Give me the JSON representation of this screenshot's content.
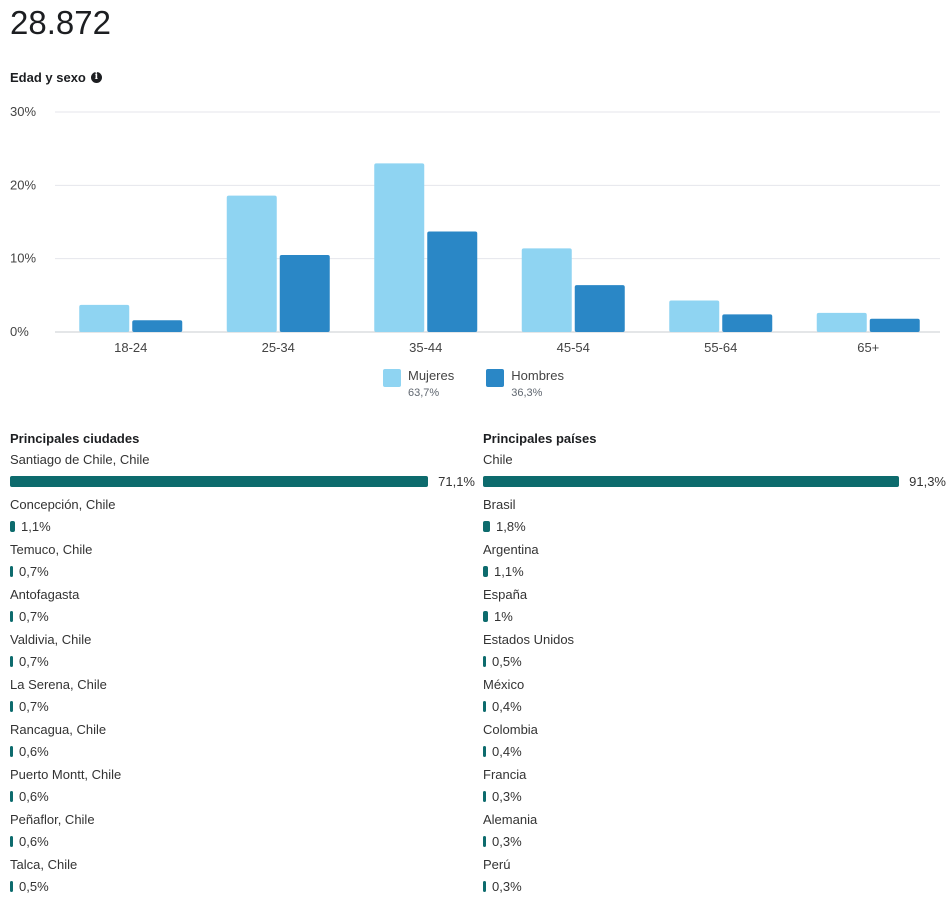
{
  "total_value": "28.872",
  "age_section": {
    "title": "Edad y sexo",
    "info_icon": "info-icon"
  },
  "chart_data": {
    "type": "bar",
    "title": "",
    "categories": [
      "18-24",
      "25-34",
      "35-44",
      "45-54",
      "55-64",
      "65+"
    ],
    "series": [
      {
        "name": "Mujeres",
        "values": [
          3.7,
          18.6,
          23.0,
          11.4,
          4.3,
          2.6
        ],
        "color": "#8fd4f2"
      },
      {
        "name": "Hombres",
        "values": [
          1.6,
          10.5,
          13.7,
          6.4,
          2.4,
          1.8
        ],
        "color": "#2a87c6"
      }
    ],
    "yticks": [
      "0%",
      "10%",
      "20%",
      "30%"
    ],
    "ylim": [
      0,
      30
    ],
    "grid": true
  },
  "legend": [
    {
      "name": "Mujeres",
      "pct": "63,7%",
      "color": "#8fd4f2"
    },
    {
      "name": "Hombres",
      "pct": "36,3%",
      "color": "#2a87c6"
    }
  ],
  "cities": {
    "title": "Principales ciudades",
    "items": [
      {
        "label": "Santiago de Chile, Chile",
        "value": 71.1,
        "display": "71,1%"
      },
      {
        "label": "Concepción, Chile",
        "value": 1.1,
        "display": "1,1%"
      },
      {
        "label": "Temuco, Chile",
        "value": 0.7,
        "display": "0,7%"
      },
      {
        "label": "Antofagasta",
        "value": 0.7,
        "display": "0,7%"
      },
      {
        "label": "Valdivia, Chile",
        "value": 0.7,
        "display": "0,7%"
      },
      {
        "label": "La Serena, Chile",
        "value": 0.7,
        "display": "0,7%"
      },
      {
        "label": "Rancagua, Chile",
        "value": 0.6,
        "display": "0,6%"
      },
      {
        "label": "Puerto Montt, Chile",
        "value": 0.6,
        "display": "0,6%"
      },
      {
        "label": "Peñaflor, Chile",
        "value": 0.6,
        "display": "0,6%"
      },
      {
        "label": "Talca, Chile",
        "value": 0.5,
        "display": "0,5%"
      }
    ]
  },
  "countries": {
    "title": "Principales países",
    "items": [
      {
        "label": "Chile",
        "value": 91.3,
        "display": "91,3%"
      },
      {
        "label": "Brasil",
        "value": 1.8,
        "display": "1,8%"
      },
      {
        "label": "Argentina",
        "value": 1.1,
        "display": "1,1%"
      },
      {
        "label": "España",
        "value": 1.0,
        "display": "1%"
      },
      {
        "label": "Estados Unidos",
        "value": 0.5,
        "display": "0,5%"
      },
      {
        "label": "México",
        "value": 0.4,
        "display": "0,4%"
      },
      {
        "label": "Colombia",
        "value": 0.4,
        "display": "0,4%"
      },
      {
        "label": "Francia",
        "value": 0.3,
        "display": "0,3%"
      },
      {
        "label": "Alemania",
        "value": 0.3,
        "display": "0,3%"
      },
      {
        "label": "Perú",
        "value": 0.3,
        "display": "0,3%"
      }
    ]
  }
}
